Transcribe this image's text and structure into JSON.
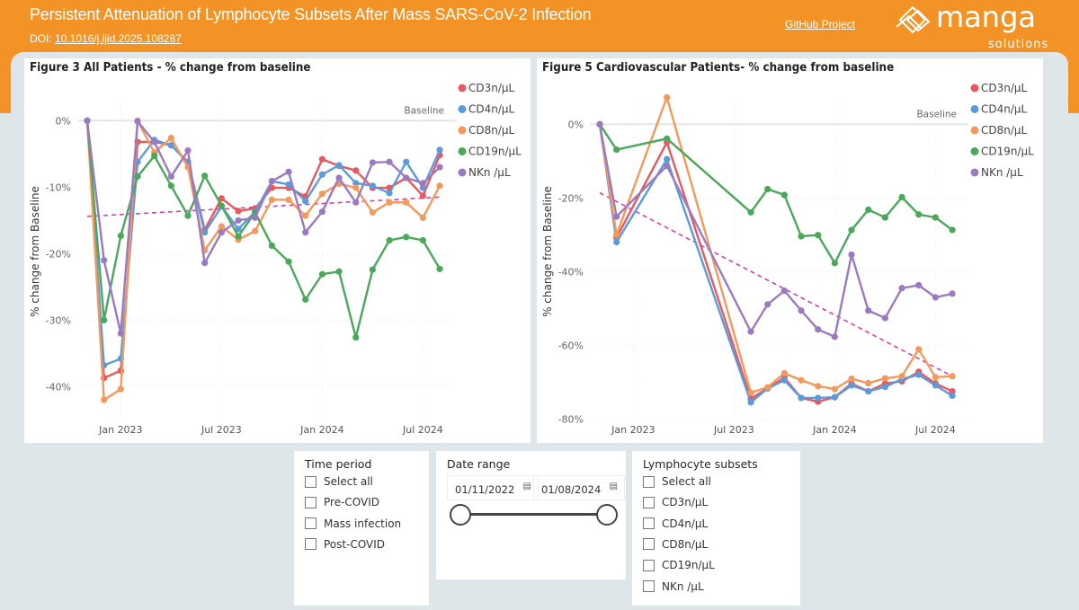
{
  "header": {
    "title": "Persistent Attenuation of Lymphocyte Subsets After Mass SARS-CoV-2 Infection",
    "doi_label": "DOI: ",
    "doi_link": "10.1016/j.ijid.2025.108287",
    "github_link": "GitHub Project",
    "logo_text": "manga",
    "logo_subtext": "solutions"
  },
  "colors": {
    "header": "#f39325",
    "CD3": "#e8585e",
    "CD4": "#5b9bdc",
    "CD8": "#f5985b",
    "CD19": "#4aa85a",
    "NK": "#9a7ac0",
    "trend": "#d63fae"
  },
  "chart_data": [
    {
      "type": "line",
      "title": "Figure 3 All Patients - % change from baseline",
      "ylabel": "% change from Baseline",
      "xlabel": "",
      "x": [
        "2022-11",
        "2022-12",
        "2023-01",
        "2023-02",
        "2023-03",
        "2023-04",
        "2023-05",
        "2023-06",
        "2023-07",
        "2023-08",
        "2023-09",
        "2023-10",
        "2023-11",
        "2023-12",
        "2024-01",
        "2024-02",
        "2024-03",
        "2024-04",
        "2024-05",
        "2024-06",
        "2024-07",
        "2024-08"
      ],
      "xticks": [
        "Jan 2023",
        "Jul 2023",
        "Jan 2024",
        "Jul 2024"
      ],
      "yticks": [
        "0%",
        "-10%",
        "-20%",
        "-30%",
        "-40%"
      ],
      "ylim": [
        -44,
        3
      ],
      "baseline_label": "Baseline",
      "grid": true,
      "legend": "right",
      "series": [
        {
          "name": "CD3n/µL",
          "color": "#e8585e",
          "values": [
            0,
            -38.7,
            -37.6,
            -3.2,
            -3.2,
            -3.7,
            -6.2,
            -16.4,
            -11.7,
            -13.6,
            -13.2,
            -10.1,
            -10.1,
            -11.4,
            -5.8,
            -6.8,
            -7.5,
            -10.1,
            -10.1,
            -8.6,
            -11.3,
            -5.2
          ]
        },
        {
          "name": "CD4n/µL",
          "color": "#5b9bdc",
          "values": [
            0,
            -36.8,
            -35.8,
            -6.2,
            -2.9,
            -3.7,
            -6.3,
            -16.8,
            -12.9,
            -16.3,
            -13.7,
            -9.1,
            -9.6,
            -12.1,
            -8.1,
            -6.7,
            -9.4,
            -9.8,
            -10.9,
            -6.2,
            -10.1,
            -4.4
          ]
        },
        {
          "name": "CD8n/µL",
          "color": "#f5985b",
          "values": [
            0,
            -42,
            -40.4,
            0,
            -4.8,
            -2.6,
            -7,
            -19.5,
            -15.9,
            -17.9,
            -16.6,
            -11.9,
            -11.9,
            -14.3,
            -11,
            -9.5,
            -10.1,
            -13.8,
            -12.3,
            -12.3,
            -14.6,
            -9.8
          ]
        },
        {
          "name": "CD19n/µL",
          "color": "#4aa85a",
          "values": [
            0,
            -30,
            -17.3,
            -8.4,
            -5.3,
            -9.8,
            -14.3,
            -8.3,
            -12.8,
            -17.4,
            -13.8,
            -18.8,
            -21.2,
            -26.9,
            -23.1,
            -22.7,
            -32.6,
            -22.4,
            -18,
            -17.5,
            -18,
            -22.3
          ]
        },
        {
          "name": "NKn /µL",
          "color": "#9a7ac0",
          "values": [
            0,
            -21,
            -32,
            -0.1,
            -3.2,
            -8.4,
            -4.5,
            -21.4,
            -16.8,
            -15,
            -14.6,
            -9.1,
            -7.7,
            -16.8,
            -13.7,
            -8.6,
            -12.3,
            -6.3,
            -6.2,
            -8.6,
            -9.4,
            -7
          ]
        }
      ],
      "trend": {
        "color": "#d63fae",
        "from": [
          "2022-11",
          -14.4
        ],
        "to": [
          "2024-08",
          -11.5
        ]
      }
    },
    {
      "type": "line",
      "title": "Figure 5 Cardiovascular Patients- % change from baseline",
      "ylabel": "% change from Baseline",
      "xlabel": "",
      "x": [
        "2022-11",
        "2022-12",
        "2023-03",
        "2023-08",
        "2023-09",
        "2023-10",
        "2023-11",
        "2023-12",
        "2024-01",
        "2024-02",
        "2024-03",
        "2024-04",
        "2024-05",
        "2024-06",
        "2024-07",
        "2024-08"
      ],
      "xticks": [
        "Jan 2023",
        "Jul 2023",
        "Jan 2024",
        "Jul 2024"
      ],
      "yticks": [
        "0%",
        "-20%",
        "-40%",
        "-60%",
        "-80%"
      ],
      "ylim": [
        -80,
        7.5
      ],
      "baseline_label": "Baseline",
      "grid": true,
      "legend": "right",
      "series": [
        {
          "name": "CD3n/µL",
          "color": "#e8585e",
          "values": [
            0,
            -30.8,
            -4.9,
            -74.5,
            -71.7,
            -68.8,
            -74.3,
            -75.3,
            -74.1,
            -70.4,
            -72.5,
            -70.4,
            -69.8,
            -67.2,
            -70.4,
            -72.5
          ]
        },
        {
          "name": "CD4n/µL",
          "color": "#5b9bdc",
          "values": [
            0,
            -32,
            -9.5,
            -75.5,
            -71.7,
            -69.5,
            -74.3,
            -74.3,
            -74.1,
            -70.9,
            -72.5,
            -71.3,
            -69.2,
            -68,
            -70.9,
            -73.7
          ]
        },
        {
          "name": "CD8n/µL",
          "color": "#f5985b",
          "values": [
            0,
            -30,
            7.3,
            -72.9,
            -71.4,
            -67.6,
            -69.5,
            -71.1,
            -71.9,
            -69.1,
            -70.3,
            -69,
            -68.4,
            -61.1,
            -68.7,
            -68.4
          ]
        },
        {
          "name": "CD19n/µL",
          "color": "#4aa85a",
          "values": [
            0,
            -6.9,
            -3.9,
            -23.9,
            -17.6,
            -19.2,
            -30.4,
            -30.1,
            -37.7,
            -28.7,
            -23.2,
            -25.3,
            -19.8,
            -24.5,
            -25.3,
            -28.7
          ]
        },
        {
          "name": "NKn /µL",
          "color": "#9a7ac0",
          "values": [
            0,
            -25.1,
            -11.3,
            -56.3,
            -48.9,
            -45.2,
            -50.6,
            -55.7,
            -57.7,
            -35.4,
            -50.6,
            -52.6,
            -44.5,
            -43.7,
            -47,
            -46
          ]
        }
      ],
      "trend": {
        "color": "#d63fae",
        "from": [
          "2022-11",
          -18.6
        ],
        "to": [
          "2024-08",
          -68.4
        ]
      }
    }
  ],
  "slicers": {
    "time_period": {
      "title": "Time period",
      "options": [
        "Select all",
        "Pre-COVID",
        "Mass infection",
        "Post-COVID"
      ]
    },
    "date_range": {
      "title": "Date range",
      "start": "01/11/2022",
      "end": "01/08/2024",
      "slider_fraction": [
        0,
        1
      ]
    },
    "subsets": {
      "title": "Lymphocyte subsets",
      "options": [
        "Select all",
        "CD3n/µL",
        "CD4n/µL",
        "CD8n/µL",
        "CD19n/µL",
        "NKn /µL"
      ]
    }
  }
}
